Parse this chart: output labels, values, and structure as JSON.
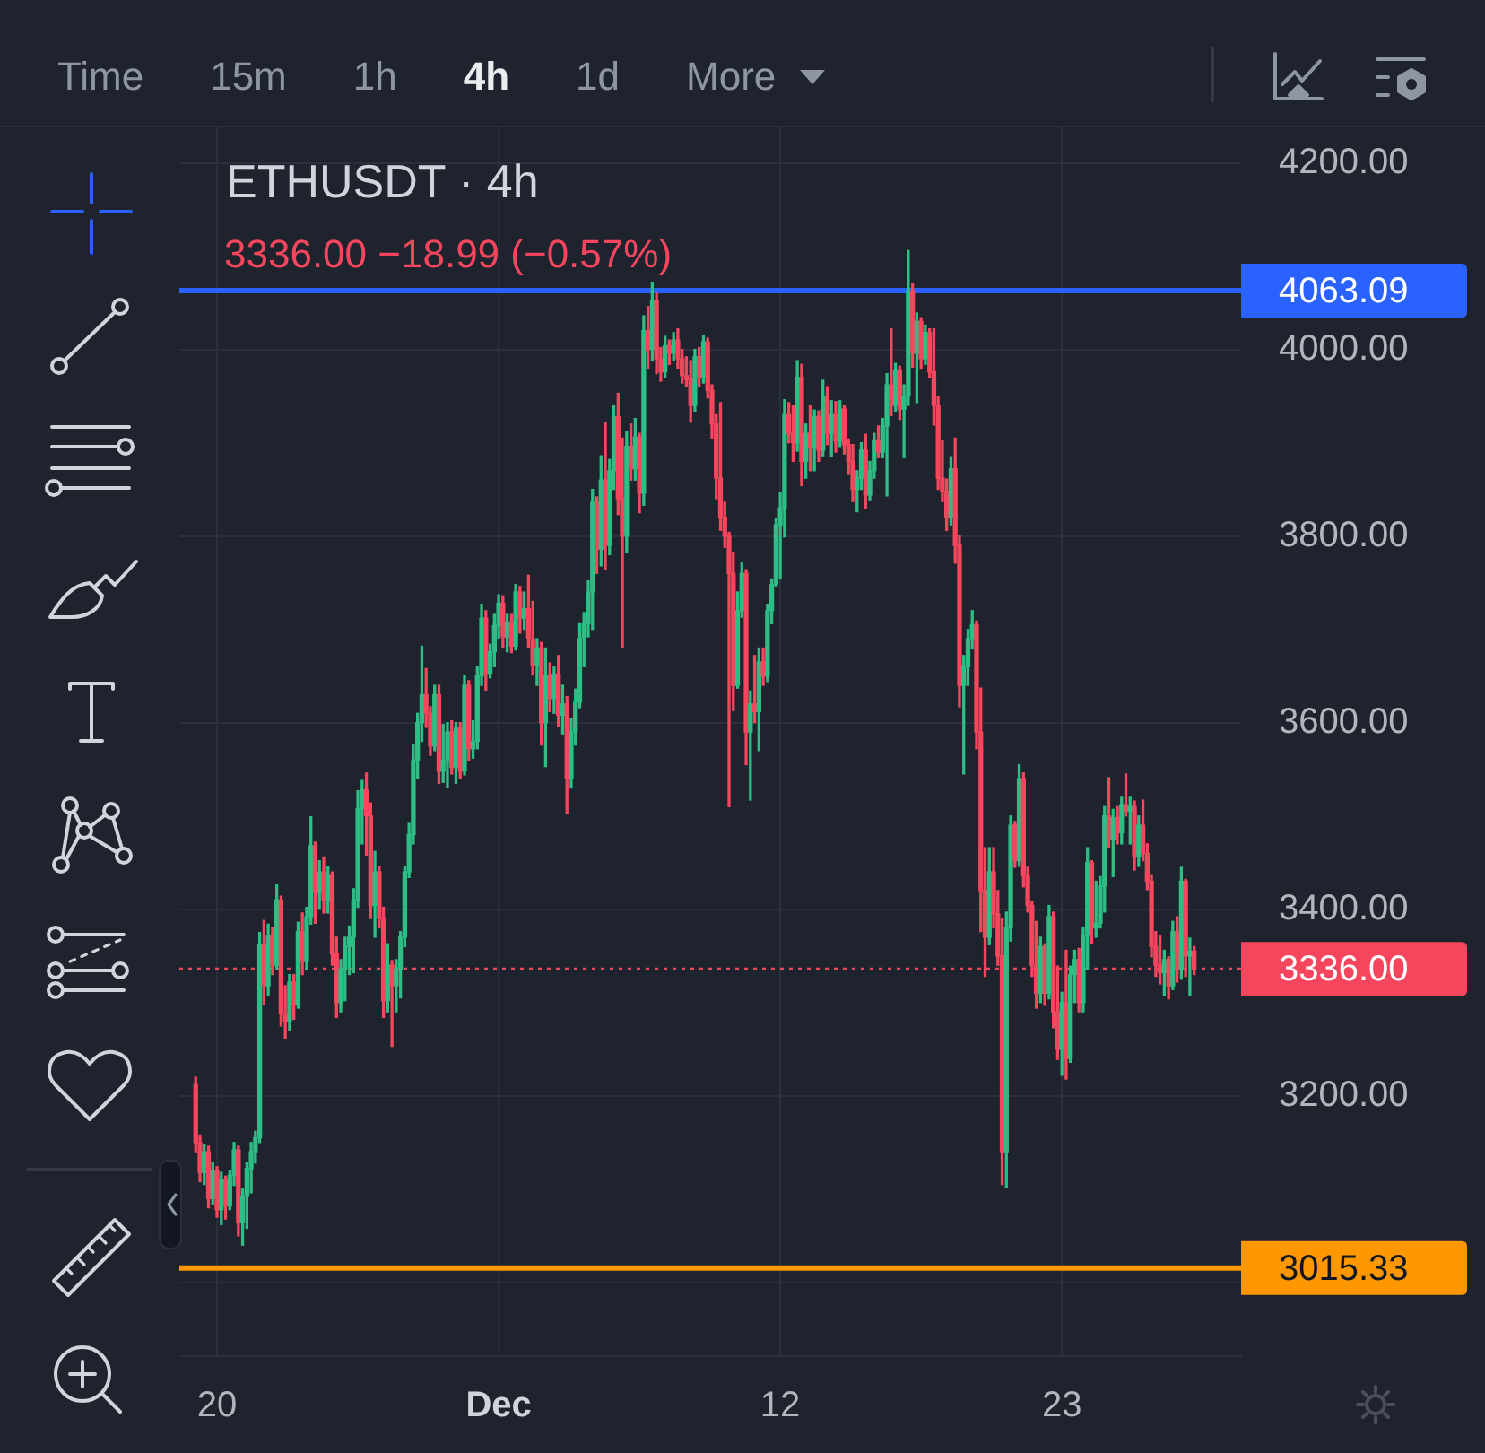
{
  "chart_data": {
    "type": "candlestick",
    "title": "ETHUSDT · 4h",
    "subtitle": "3336.00 −18.99 (−0.57%)",
    "annotations": [
      "Time",
      "15m",
      "1h",
      "4h",
      "1d",
      "More"
    ],
    "x": [
      "--11-19T04:00",
      "--11-19T08:00",
      "--11-19T12:00",
      "--11-19T16:00",
      "--11-19T20:00",
      "--11-20T00:00",
      "--11-20T04:00",
      "--11-20T08:00",
      "--11-20T12:00",
      "--11-20T16:00",
      "--11-20T20:00",
      "--11-21T00:00",
      "--11-21T04:00",
      "--11-21T08:00",
      "--11-21T12:00",
      "--11-21T16:00",
      "--11-21T20:00",
      "--11-22T00:00",
      "--11-22T04:00",
      "--11-22T08:00",
      "--11-22T12:00",
      "--11-22T16:00",
      "--11-22T20:00",
      "--11-23T00:00",
      "--11-23T04:00",
      "--11-23T08:00",
      "--11-23T12:00",
      "--11-23T16:00",
      "--11-23T20:00",
      "--11-24T00:00",
      "--11-24T04:00",
      "--11-24T08:00",
      "--11-24T12:00",
      "--11-24T16:00",
      "--11-24T20:00",
      "--11-25T00:00",
      "--11-25T04:00",
      "--11-25T08:00",
      "--11-25T12:00",
      "--11-25T16:00",
      "--11-25T20:00",
      "--11-26T00:00",
      "--11-26T04:00",
      "--11-26T08:00",
      "--11-26T12:00",
      "--11-26T16:00",
      "--11-26T20:00",
      "--11-27T00:00",
      "--11-27T04:00",
      "--11-27T08:00",
      "--11-27T12:00",
      "--11-27T16:00",
      "--11-27T20:00",
      "--11-28T00:00",
      "--11-28T04:00",
      "--11-28T08:00",
      "--11-28T12:00",
      "--11-28T16:00",
      "--11-28T20:00",
      "--11-29T00:00",
      "--11-29T04:00",
      "--11-29T08:00",
      "--11-29T12:00",
      "--11-29T16:00",
      "--11-29T20:00",
      "--11-30T00:00",
      "--11-30T04:00",
      "--11-30T08:00",
      "--11-30T12:00",
      "--11-30T16:00",
      "--11-30T20:00",
      "--12-01T00:00",
      "--12-01T04:00",
      "--12-01T08:00",
      "--12-01T12:00",
      "--12-01T16:00",
      "--12-01T20:00",
      "--12-02T00:00",
      "--12-02T04:00",
      "--12-02T08:00",
      "--12-02T12:00",
      "--12-02T16:00",
      "--12-02T20:00",
      "--12-03T00:00",
      "--12-03T04:00",
      "--12-03T08:00",
      "--12-03T12:00",
      "--12-03T16:00",
      "--12-03T20:00",
      "--12-04T00:00",
      "--12-04T04:00",
      "--12-04T08:00",
      "--12-04T12:00",
      "--12-04T16:00",
      "--12-04T20:00",
      "--12-05T00:00",
      "--12-05T04:00",
      "--12-05T08:00",
      "--12-05T12:00",
      "--12-05T16:00",
      "--12-05T20:00",
      "--12-06T00:00",
      "--12-06T04:00",
      "--12-06T08:00",
      "--12-06T12:00",
      "--12-06T16:00",
      "--12-06T20:00",
      "--12-07T00:00",
      "--12-07T04:00",
      "--12-07T08:00",
      "--12-07T12:00",
      "--12-07T16:00",
      "--12-07T20:00",
      "--12-08T00:00",
      "--12-08T04:00",
      "--12-08T08:00",
      "--12-08T12:00",
      "--12-08T16:00",
      "--12-08T20:00",
      "--12-09T00:00",
      "--12-09T04:00",
      "--12-09T08:00",
      "--12-09T12:00",
      "--12-09T16:00",
      "--12-09T20:00",
      "--12-10T00:00",
      "--12-10T04:00",
      "--12-10T08:00",
      "--12-10T12:00",
      "--12-10T16:00",
      "--12-10T20:00",
      "--12-11T00:00",
      "--12-11T04:00",
      "--12-11T08:00",
      "--12-11T12:00",
      "--12-11T16:00",
      "--12-11T20:00",
      "--12-12T00:00",
      "--12-12T04:00",
      "--12-12T08:00",
      "--12-12T12:00",
      "--12-12T16:00",
      "--12-12T20:00",
      "--12-13T00:00",
      "--12-13T04:00",
      "--12-13T08:00",
      "--12-13T12:00",
      "--12-13T16:00",
      "--12-13T20:00",
      "--12-14T00:00",
      "--12-14T04:00",
      "--12-14T08:00",
      "--12-14T12:00",
      "--12-14T16:00",
      "--12-14T20:00",
      "--12-15T00:00",
      "--12-15T04:00",
      "--12-15T08:00",
      "--12-15T12:00",
      "--12-15T16:00",
      "--12-15T20:00",
      "--12-16T00:00",
      "--12-16T04:00",
      "--12-16T08:00",
      "--12-16T12:00",
      "--12-16T16:00",
      "--12-16T20:00",
      "--12-17T00:00",
      "--12-17T04:00",
      "--12-17T08:00",
      "--12-17T12:00",
      "--12-17T16:00",
      "--12-17T20:00",
      "--12-18T00:00",
      "--12-18T04:00",
      "--12-18T08:00",
      "--12-18T12:00",
      "--12-18T16:00",
      "--12-18T20:00",
      "--12-19T00:00",
      "--12-19T04:00",
      "--12-19T08:00",
      "--12-19T12:00",
      "--12-19T16:00",
      "--12-19T20:00",
      "--12-20T00:00",
      "--12-20T04:00",
      "--12-20T08:00",
      "--12-20T12:00",
      "--12-20T16:00",
      "--12-20T20:00",
      "--12-21T00:00",
      "--12-21T04:00",
      "--12-21T08:00",
      "--12-21T12:00",
      "--12-21T16:00",
      "--12-21T20:00",
      "--12-22T00:00",
      "--12-22T04:00",
      "--12-22T08:00",
      "--12-22T12:00",
      "--12-22T16:00",
      "--12-22T20:00",
      "--12-23T00:00",
      "--12-23T04:00",
      "--12-23T08:00",
      "--12-23T12:00",
      "--12-23T16:00",
      "--12-23T20:00",
      "--12-24T00:00",
      "--12-24T04:00",
      "--12-24T08:00",
      "--12-24T12:00",
      "--12-24T16:00",
      "--12-24T20:00",
      "--12-25T00:00",
      "--12-25T04:00",
      "--12-25T08:00",
      "--12-25T12:00",
      "--12-25T16:00",
      "--12-25T20:00",
      "--12-26T00:00",
      "--12-26T04:00",
      "--12-26T08:00",
      "--12-26T12:00",
      "--12-26T16:00",
      "--12-26T20:00",
      "--12-27T00:00",
      "--12-27T04:00",
      "--12-27T08:00",
      "--12-27T12:00",
      "--12-27T16:00",
      "--12-27T20:00",
      "--12-28T00:00",
      "--12-28T04:00"
    ],
    "ohlc": [
      [
        3212,
        3220,
        3140,
        3150
      ],
      [
        3150,
        3158,
        3108,
        3118
      ],
      [
        3118,
        3148,
        3105,
        3140
      ],
      [
        3140,
        3146,
        3080,
        3090
      ],
      [
        3090,
        3128,
        3084,
        3120
      ],
      [
        3120,
        3124,
        3070,
        3078
      ],
      [
        3078,
        3118,
        3062,
        3110
      ],
      [
        3110,
        3114,
        3068,
        3082
      ],
      [
        3082,
        3120,
        3078,
        3115
      ],
      [
        3115,
        3150,
        3104,
        3142
      ],
      [
        3142,
        3146,
        3050,
        3064
      ],
      [
        3064,
        3100,
        3040,
        3092
      ],
      [
        3092,
        3128,
        3058,
        3122
      ],
      [
        3122,
        3150,
        3096,
        3140
      ],
      [
        3140,
        3162,
        3128,
        3155
      ],
      [
        3155,
        3375,
        3150,
        3362
      ],
      [
        3362,
        3388,
        3298,
        3318
      ],
      [
        3318,
        3384,
        3308,
        3372
      ],
      [
        3372,
        3380,
        3330,
        3340
      ],
      [
        3340,
        3426,
        3336,
        3410
      ],
      [
        3410,
        3414,
        3275,
        3288
      ],
      [
        3288,
        3318,
        3262,
        3280
      ],
      [
        3280,
        3330,
        3270,
        3322
      ],
      [
        3322,
        3330,
        3282,
        3298
      ],
      [
        3298,
        3386,
        3294,
        3376
      ],
      [
        3376,
        3396,
        3330,
        3344
      ],
      [
        3344,
        3402,
        3336,
        3392
      ],
      [
        3392,
        3499,
        3384,
        3468
      ],
      [
        3468,
        3472,
        3385,
        3418
      ],
      [
        3418,
        3452,
        3400,
        3440
      ],
      [
        3440,
        3456,
        3396,
        3410
      ],
      [
        3410,
        3446,
        3396,
        3436
      ],
      [
        3436,
        3440,
        3340,
        3352
      ],
      [
        3352,
        3370,
        3284,
        3300
      ],
      [
        3300,
        3346,
        3290,
        3336
      ],
      [
        3336,
        3370,
        3302,
        3360
      ],
      [
        3360,
        3382,
        3330,
        3370
      ],
      [
        3370,
        3422,
        3332,
        3410
      ],
      [
        3410,
        3527,
        3402,
        3508
      ],
      [
        3508,
        3538,
        3470,
        3528
      ],
      [
        3528,
        3546,
        3458,
        3500
      ],
      [
        3500,
        3514,
        3390,
        3404
      ],
      [
        3404,
        3462,
        3370,
        3440
      ],
      [
        3440,
        3446,
        3380,
        3390
      ],
      [
        3390,
        3402,
        3284,
        3302
      ],
      [
        3302,
        3363,
        3290,
        3340
      ],
      [
        3340,
        3345,
        3253,
        3318
      ],
      [
        3318,
        3346,
        3290,
        3336
      ],
      [
        3336,
        3376,
        3305,
        3370
      ],
      [
        3370,
        3446,
        3360,
        3440
      ],
      [
        3440,
        3492,
        3434,
        3480
      ],
      [
        3480,
        3576,
        3470,
        3560
      ],
      [
        3560,
        3610,
        3540,
        3600
      ],
      [
        3600,
        3682,
        3580,
        3630
      ],
      [
        3630,
        3658,
        3595,
        3610
      ],
      [
        3610,
        3617,
        3565,
        3575
      ],
      [
        3575,
        3640,
        3570,
        3630
      ],
      [
        3630,
        3640,
        3535,
        3548
      ],
      [
        3548,
        3598,
        3536,
        3560
      ],
      [
        3560,
        3600,
        3530,
        3590
      ],
      [
        3590,
        3602,
        3545,
        3552
      ],
      [
        3552,
        3600,
        3535,
        3594
      ],
      [
        3594,
        3600,
        3540,
        3548
      ],
      [
        3548,
        3650,
        3544,
        3640
      ],
      [
        3640,
        3645,
        3560,
        3572
      ],
      [
        3572,
        3602,
        3562,
        3580
      ],
      [
        3580,
        3660,
        3572,
        3650
      ],
      [
        3650,
        3727,
        3640,
        3712
      ],
      [
        3712,
        3720,
        3635,
        3652
      ],
      [
        3652,
        3684,
        3648,
        3676
      ],
      [
        3676,
        3716,
        3660,
        3704
      ],
      [
        3704,
        3737,
        3690,
        3728
      ],
      [
        3728,
        3736,
        3680,
        3692
      ],
      [
        3692,
        3716,
        3676,
        3708
      ],
      [
        3708,
        3716,
        3675,
        3682
      ],
      [
        3682,
        3748,
        3678,
        3740
      ],
      [
        3740,
        3746,
        3696,
        3712
      ],
      [
        3712,
        3740,
        3700,
        3722
      ],
      [
        3722,
        3758,
        3680,
        3690
      ],
      [
        3690,
        3730,
        3651,
        3662
      ],
      [
        3662,
        3690,
        3640,
        3680
      ],
      [
        3680,
        3686,
        3576,
        3600
      ],
      [
        3600,
        3680,
        3553,
        3650
      ],
      [
        3650,
        3664,
        3612,
        3626
      ],
      [
        3626,
        3660,
        3610,
        3652
      ],
      [
        3652,
        3672,
        3596,
        3608
      ],
      [
        3608,
        3640,
        3588,
        3620
      ],
      [
        3620,
        3628,
        3503,
        3540
      ],
      [
        3540,
        3604,
        3530,
        3590
      ],
      [
        3590,
        3636,
        3576,
        3622
      ],
      [
        3622,
        3706,
        3616,
        3690
      ],
      [
        3690,
        3718,
        3660,
        3706
      ],
      [
        3706,
        3752,
        3692,
        3740
      ],
      [
        3740,
        3850,
        3700,
        3836
      ],
      [
        3836,
        3842,
        3760,
        3786
      ],
      [
        3786,
        3886,
        3768,
        3860
      ],
      [
        3860,
        3922,
        3764,
        3790
      ],
      [
        3790,
        3882,
        3780,
        3870
      ],
      [
        3870,
        3940,
        3850,
        3928
      ],
      [
        3928,
        3953,
        3823,
        3840
      ],
      [
        3840,
        3905,
        3680,
        3800
      ],
      [
        3800,
        3912,
        3782,
        3896
      ],
      [
        3896,
        3920,
        3860,
        3872
      ],
      [
        3872,
        3926,
        3860,
        3906
      ],
      [
        3906,
        3910,
        3825,
        3846
      ],
      [
        3846,
        4036,
        3833,
        4020
      ],
      [
        4020,
        4046,
        3980,
        4000
      ],
      [
        4000,
        4072,
        3988,
        4052
      ],
      [
        4052,
        4060,
        3974,
        3990
      ],
      [
        3990,
        4002,
        3966,
        3976
      ],
      [
        3976,
        4014,
        3970,
        4004
      ],
      [
        4004,
        4010,
        3984,
        3996
      ],
      [
        3996,
        4018,
        3988,
        4010
      ],
      [
        4010,
        4022,
        3980,
        3990
      ],
      [
        3990,
        4000,
        3964,
        3972
      ],
      [
        3972,
        3992,
        3960,
        3968
      ],
      [
        3968,
        3988,
        3922,
        3940
      ],
      [
        3940,
        4000,
        3934,
        3992
      ],
      [
        3992,
        4002,
        3960,
        3970
      ],
      [
        3970,
        4015,
        3964,
        4008
      ],
      [
        4008,
        4012,
        3948,
        3956
      ],
      [
        3956,
        3962,
        3905,
        3920
      ],
      [
        3920,
        3930,
        3840,
        3862
      ],
      [
        3862,
        3943,
        3806,
        3820
      ],
      [
        3820,
        3836,
        3788,
        3800
      ],
      [
        3800,
        3804,
        3510,
        3760
      ],
      [
        3760,
        3782,
        3613,
        3640
      ],
      [
        3640,
        3740,
        3637,
        3720
      ],
      [
        3720,
        3771,
        3713,
        3760
      ],
      [
        3760,
        3764,
        3555,
        3590
      ],
      [
        3590,
        3634,
        3517,
        3620
      ],
      [
        3620,
        3672,
        3600,
        3612
      ],
      [
        3612,
        3680,
        3570,
        3665
      ],
      [
        3665,
        3680,
        3640,
        3650
      ],
      [
        3650,
        3727,
        3644,
        3720
      ],
      [
        3720,
        3754,
        3706,
        3748
      ],
      [
        3748,
        3819,
        3746,
        3812
      ],
      [
        3812,
        3847,
        3754,
        3830
      ],
      [
        3830,
        3946,
        3799,
        3930
      ],
      [
        3930,
        3943,
        3900,
        3910
      ],
      [
        3910,
        3940,
        3880,
        3900
      ],
      [
        3900,
        3988,
        3891,
        3970
      ],
      [
        3970,
        3984,
        3854,
        3880
      ],
      [
        3880,
        3920,
        3862,
        3910
      ],
      [
        3910,
        3940,
        3870,
        3895
      ],
      [
        3895,
        3935,
        3870,
        3928
      ],
      [
        3928,
        3934,
        3880,
        3892
      ],
      [
        3892,
        3967,
        3886,
        3950
      ],
      [
        3950,
        3960,
        3898,
        3910
      ],
      [
        3910,
        3945,
        3885,
        3930
      ],
      [
        3930,
        3944,
        3890,
        3902
      ],
      [
        3902,
        3945,
        3896,
        3936
      ],
      [
        3936,
        3940,
        3888,
        3898
      ],
      [
        3898,
        3904,
        3866,
        3880
      ],
      [
        3880,
        3898,
        3837,
        3850
      ],
      [
        3850,
        3870,
        3826,
        3862
      ],
      [
        3862,
        3900,
        3850,
        3892
      ],
      [
        3892,
        3909,
        3830,
        3844
      ],
      [
        3844,
        3880,
        3838,
        3870
      ],
      [
        3870,
        3910,
        3862,
        3902
      ],
      [
        3902,
        3918,
        3884,
        3890
      ],
      [
        3890,
        3926,
        3884,
        3918
      ],
      [
        3918,
        3974,
        3843,
        3962
      ],
      [
        3962,
        4022,
        3929,
        3940
      ],
      [
        3940,
        3985,
        3934,
        3978
      ],
      [
        3978,
        3982,
        3925,
        3936
      ],
      [
        3936,
        3962,
        3884,
        3950
      ],
      [
        3950,
        4106,
        3940,
        4062
      ],
      [
        4062,
        4070,
        3981,
        3996
      ],
      [
        3996,
        4039,
        3943,
        4030
      ],
      [
        4030,
        4034,
        3980,
        3990
      ],
      [
        3990,
        4026,
        3984,
        4018
      ],
      [
        4018,
        4022,
        3970,
        3976
      ],
      [
        3976,
        4022,
        3919,
        3940
      ],
      [
        3940,
        3950,
        3850,
        3862
      ],
      [
        3862,
        3902,
        3837,
        3848
      ],
      [
        3848,
        3861,
        3806,
        3820
      ],
      [
        3820,
        3885,
        3812,
        3872
      ],
      [
        3872,
        3905,
        3771,
        3790
      ],
      [
        3790,
        3800,
        3617,
        3640
      ],
      [
        3640,
        3672,
        3545,
        3660
      ],
      [
        3660,
        3700,
        3640,
        3690
      ],
      [
        3690,
        3720,
        3679,
        3705
      ],
      [
        3705,
        3709,
        3572,
        3590
      ],
      [
        3590,
        3637,
        3376,
        3420
      ],
      [
        3420,
        3466,
        3328,
        3370
      ],
      [
        3370,
        3466,
        3362,
        3440
      ],
      [
        3440,
        3466,
        3380,
        3395
      ],
      [
        3395,
        3420,
        3340,
        3350
      ],
      [
        3350,
        3390,
        3105,
        3140
      ],
      [
        3140,
        3397,
        3102,
        3380
      ],
      [
        3380,
        3500,
        3366,
        3490
      ],
      [
        3490,
        3494,
        3445,
        3452
      ],
      [
        3452,
        3555,
        3446,
        3540
      ],
      [
        3540,
        3546,
        3424,
        3436
      ],
      [
        3436,
        3445,
        3397,
        3404
      ],
      [
        3404,
        3408,
        3328,
        3340
      ],
      [
        3340,
        3387,
        3294,
        3310
      ],
      [
        3310,
        3370,
        3300,
        3360
      ],
      [
        3360,
        3363,
        3297,
        3310
      ],
      [
        3310,
        3404,
        3304,
        3392
      ],
      [
        3392,
        3397,
        3273,
        3290
      ],
      [
        3290,
        3339,
        3239,
        3250
      ],
      [
        3250,
        3311,
        3222,
        3300
      ],
      [
        3300,
        3356,
        3218,
        3240
      ],
      [
        3240,
        3339,
        3236,
        3330
      ],
      [
        3330,
        3356,
        3300,
        3346
      ],
      [
        3346,
        3358,
        3290,
        3300
      ],
      [
        3300,
        3380,
        3290,
        3372
      ],
      [
        3372,
        3466,
        3335,
        3450
      ],
      [
        3450,
        3452,
        3363,
        3380
      ],
      [
        3380,
        3430,
        3370,
        3385
      ],
      [
        3385,
        3435,
        3380,
        3425
      ],
      [
        3425,
        3510,
        3397,
        3500
      ],
      [
        3500,
        3541,
        3466,
        3475
      ],
      [
        3475,
        3507,
        3435,
        3498
      ],
      [
        3498,
        3510,
        3470,
        3482
      ],
      [
        3482,
        3520,
        3470,
        3512
      ],
      [
        3512,
        3545,
        3500,
        3505
      ],
      [
        3505,
        3520,
        3470,
        3510
      ],
      [
        3510,
        3516,
        3442,
        3456
      ],
      [
        3456,
        3500,
        3446,
        3490
      ],
      [
        3490,
        3517,
        3452,
        3460
      ],
      [
        3460,
        3470,
        3421,
        3430
      ],
      [
        3430,
        3436,
        3349,
        3360
      ],
      [
        3360,
        3376,
        3328,
        3340
      ],
      [
        3340,
        3372,
        3320,
        3332
      ],
      [
        3332,
        3356,
        3308,
        3346
      ],
      [
        3346,
        3349,
        3304,
        3318
      ],
      [
        3318,
        3387,
        3314,
        3376
      ],
      [
        3376,
        3392,
        3322,
        3336
      ],
      [
        3336,
        3445,
        3325,
        3430
      ],
      [
        3430,
        3432,
        3328,
        3350
      ],
      [
        3350,
        3369,
        3308,
        3355
      ],
      [
        3355,
        3360,
        3330,
        3336
      ]
    ],
    "colors": [
      "#f6465d",
      "#f6465d",
      "#2ebd85",
      "#f6465d",
      "#2ebd85",
      "#f6465d",
      "#2ebd85",
      "#f6465d",
      "#2ebd85",
      "#2ebd85",
      "#f6465d",
      "#2ebd85",
      "#2ebd85",
      "#2ebd85",
      "#2ebd85",
      "#2ebd85",
      "#f6465d",
      "#2ebd85",
      "#f6465d",
      "#2ebd85",
      "#f6465d",
      "#f6465d",
      "#2ebd85",
      "#f6465d",
      "#2ebd85",
      "#f6465d",
      "#2ebd85",
      "#2ebd85",
      "#f6465d",
      "#2ebd85",
      "#f6465d",
      "#2ebd85",
      "#f6465d",
      "#f6465d",
      "#2ebd85",
      "#2ebd85",
      "#2ebd85",
      "#2ebd85",
      "#2ebd85",
      "#2ebd85",
      "#f6465d",
      "#f6465d",
      "#2ebd85",
      "#f6465d",
      "#f6465d",
      "#2ebd85",
      "#f6465d",
      "#2ebd85",
      "#2ebd85",
      "#2ebd85",
      "#2ebd85",
      "#2ebd85",
      "#2ebd85",
      "#2ebd85",
      "#f6465d",
      "#f6465d",
      "#2ebd85",
      "#f6465d",
      "#2ebd85",
      "#2ebd85",
      "#f6465d",
      "#2ebd85",
      "#f6465d",
      "#2ebd85",
      "#f6465d",
      "#2ebd85",
      "#2ebd85",
      "#2ebd85",
      "#f6465d",
      "#2ebd85",
      "#2ebd85",
      "#2ebd85",
      "#f6465d",
      "#2ebd85",
      "#f6465d",
      "#2ebd85",
      "#f6465d",
      "#2ebd85",
      "#f6465d",
      "#f6465d",
      "#2ebd85",
      "#f6465d",
      "#2ebd85",
      "#f6465d",
      "#2ebd85",
      "#f6465d",
      "#2ebd85",
      "#f6465d",
      "#2ebd85",
      "#2ebd85",
      "#2ebd85",
      "#2ebd85",
      "#2ebd85",
      "#2ebd85",
      "#f6465d",
      "#2ebd85",
      "#f6465d",
      "#2ebd85",
      "#2ebd85",
      "#f6465d",
      "#f6465d",
      "#2ebd85",
      "#f6465d",
      "#2ebd85",
      "#f6465d",
      "#2ebd85",
      "#f6465d",
      "#2ebd85",
      "#f6465d",
      "#f6465d",
      "#2ebd85",
      "#f6465d",
      "#2ebd85",
      "#f6465d",
      "#f6465d",
      "#f6465d",
      "#f6465d",
      "#2ebd85",
      "#f6465d",
      "#2ebd85",
      "#f6465d",
      "#f6465d",
      "#f6465d",
      "#f6465d",
      "#f6465d",
      "#f6465d",
      "#f6465d",
      "#2ebd85",
      "#2ebd85",
      "#f6465d",
      "#2ebd85",
      "#f6465d",
      "#2ebd85",
      "#f6465d",
      "#2ebd85",
      "#2ebd85",
      "#2ebd85",
      "#2ebd85",
      "#2ebd85",
      "#f6465d",
      "#f6465d",
      "#2ebd85",
      "#f6465d",
      "#2ebd85",
      "#f6465d",
      "#2ebd85",
      "#f6465d",
      "#2ebd85",
      "#f6465d",
      "#2ebd85",
      "#f6465d",
      "#2ebd85",
      "#f6465d",
      "#f6465d",
      "#f6465d",
      "#2ebd85",
      "#2ebd85",
      "#f6465d",
      "#2ebd85",
      "#2ebd85",
      "#f6465d",
      "#2ebd85",
      "#2ebd85",
      "#f6465d",
      "#2ebd85",
      "#f6465d",
      "#2ebd85",
      "#2ebd85",
      "#f6465d",
      "#2ebd85",
      "#f6465d",
      "#2ebd85",
      "#f6465d",
      "#f6465d",
      "#f6465d",
      "#f6465d",
      "#f6465d",
      "#2ebd85",
      "#f6465d",
      "#f6465d",
      "#2ebd85",
      "#2ebd85",
      "#2ebd85",
      "#f6465d",
      "#f6465d",
      "#f6465d",
      "#2ebd85",
      "#f6465d",
      "#f6465d",
      "#f6465d",
      "#2ebd85",
      "#2ebd85",
      "#f6465d",
      "#2ebd85",
      "#f6465d",
      "#f6465d",
      "#f6465d",
      "#f6465d",
      "#2ebd85",
      "#f6465d",
      "#2ebd85",
      "#f6465d",
      "#f6465d",
      "#2ebd85",
      "#f6465d",
      "#2ebd85",
      "#2ebd85",
      "#f6465d",
      "#2ebd85",
      "#2ebd85",
      "#f6465d",
      "#2ebd85",
      "#2ebd85",
      "#2ebd85",
      "#f6465d",
      "#2ebd85",
      "#f6465d",
      "#2ebd85",
      "#f6465d",
      "#2ebd85",
      "#f6465d",
      "#2ebd85",
      "#f6465d",
      "#f6465d",
      "#f6465d",
      "#f6465d",
      "#f6465d",
      "#2ebd85",
      "#f6465d",
      "#2ebd85",
      "#f6465d",
      "#2ebd85",
      "#f6465d",
      "#2ebd85",
      "#f6465d"
    ],
    "xlim": [
      "--11-18T12:40",
      "--12-30T00:00"
    ],
    "xticks": [
      {
        "value": "--11-20",
        "label": "20"
      },
      {
        "value": "--12-01",
        "label": "Dec"
      },
      {
        "value": "--12-12",
        "label": "12"
      },
      {
        "value": "--12-23",
        "label": "23"
      }
    ],
    "ylim": [
      2921,
      4238
    ],
    "yticks": [
      {
        "value": 3000,
        "label": null
      },
      {
        "value": 3200,
        "label": "3200.00"
      },
      {
        "value": 3400,
        "label": "3400.00"
      },
      {
        "value": 3600,
        "label": "3600.00"
      },
      {
        "value": 3800,
        "label": "3800.00"
      },
      {
        "value": 4000,
        "label": "4000.00"
      },
      {
        "value": 4200,
        "label": "4200.00"
      }
    ],
    "grid": true,
    "ref_lines": [
      {
        "axis": "y",
        "value": 4063.09,
        "label": "4063.09",
        "color": "#2962ff",
        "line_style": "solid"
      },
      {
        "axis": "y",
        "value": 3015.33,
        "label": "3015.33",
        "color": "#ff9800",
        "line_style": "solid"
      },
      {
        "axis": "y",
        "value": 3336,
        "label": "3336.00",
        "color": "#f6465d",
        "line_style": "dotted"
      }
    ]
  }
}
